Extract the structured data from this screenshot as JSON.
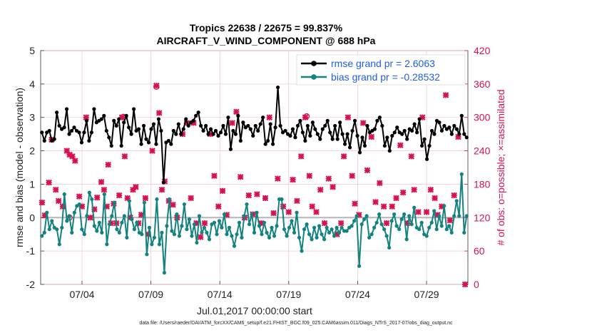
{
  "chart_data": {
    "type": "line",
    "title_line1": "Tropics 22638 / 22675 = 99.837%",
    "title_line2": "AIRCRAFT_V_WIND_COMPONENT @ 688 hPa",
    "xlabel": "Jul.01,2017 00:00:00 start",
    "ylabel": "rmse and bias (model - observation)",
    "ylabel_right": "# of obs: o=possible; ×=assimilated",
    "footer": "data file: /Users/raeder/DAI/ATM_forcXX/CAM6_setup/f.e21.FHIST_BGC.f09_025.CAM6assim.011/Diags_NTrS_2017-07/obs_diag_output.nc",
    "xlim": [
      1.0,
      32.0
    ],
    "ylim": [
      -2,
      5
    ],
    "ylim_right": [
      0,
      420
    ],
    "x_ticks": [
      {
        "x": 4,
        "label": "07/04"
      },
      {
        "x": 9,
        "label": "07/09"
      },
      {
        "x": 14,
        "label": "07/14"
      },
      {
        "x": 19,
        "label": "07/19"
      },
      {
        "x": 24,
        "label": "07/24"
      },
      {
        "x": 29,
        "label": "07/29"
      }
    ],
    "y_ticks": [
      "-2",
      "-1",
      "0",
      "1",
      "2",
      "3",
      "4",
      "5"
    ],
    "y_ticks_right": [
      "0",
      "60",
      "120",
      "180",
      "240",
      "300",
      "360",
      "420"
    ],
    "legend": {
      "position": "top-right",
      "entries": [
        "rmse grand pr = 2.6063",
        "bias grand pr = -0.28532"
      ]
    },
    "colors": {
      "rmse": "#000000",
      "bias": "#138280",
      "obs": "#d6124f",
      "legend_text": "#1f5fe0",
      "zero_line": "#b5b5b5",
      "grid": "#f2c9d6"
    },
    "series": [
      {
        "name": "rmse",
        "values": [
          2.55,
          2.3,
          2.55,
          2.6,
          2.3,
          2.35,
          3.15,
          2.75,
          2.65,
          2.7,
          3.25,
          2.5,
          2.6,
          2.7,
          2.6,
          2.55,
          2.25,
          2.55,
          2.9,
          2.3,
          2.55,
          3.25,
          2.85,
          2.9,
          2.95,
          3.05,
          2.6,
          2.4,
          2.15,
          2.9,
          2.75,
          2.95,
          2.15,
          2.85,
          3.05,
          2.7,
          2.5,
          3.25,
          2.6,
          2.65,
          2.2,
          2.75,
          2.35,
          2.25,
          2.65,
          2.8,
          2.2,
          2.95,
          2.6,
          1.05,
          2.25,
          2.3,
          2.2,
          2.6,
          2.5,
          2.8,
          2.5,
          2.65,
          2.95,
          2.75,
          2.85,
          2.9,
          3.05,
          3.15,
          2.75,
          2.6,
          2.75,
          2.5,
          2.65,
          2.5,
          2.6,
          2.45,
          2.55,
          2.75,
          2.5,
          3.0,
          2.05,
          2.6,
          2.5,
          3.05,
          2.3,
          2.85,
          2.7,
          2.75,
          2.65,
          2.45,
          2.75,
          2.6,
          2.8,
          3.0,
          2.2,
          2.3,
          2.8,
          2.2,
          2.7,
          3.9,
          2.75,
          2.55,
          2.6,
          2.5,
          2.45,
          2.65,
          2.4,
          2.75,
          2.9,
          2.55,
          2.3,
          2.75,
          2.45,
          2.85,
          2.65,
          2.5,
          2.35,
          2.65,
          2.75,
          2.9,
          2.55,
          2.35,
          2.75,
          2.35,
          2.85,
          2.5,
          2.2,
          2.5,
          2.1,
          2.6,
          2.9,
          2.45,
          1.95,
          2.4,
          2.15,
          2.75,
          2.55,
          2.6,
          2.65,
          2.9,
          3.0,
          2.75,
          2.15,
          2.4,
          2.0,
          2.45,
          2.55,
          2.7,
          2.55,
          2.5,
          2.6,
          2.35,
          2.65,
          2.6,
          2.8,
          2.55,
          2.95,
          2.15,
          2.35,
          1.75,
          2.15,
          2.6,
          2.5,
          2.9,
          2.85,
          2.6,
          2.75,
          2.65,
          2.7,
          2.5,
          2.75,
          2.65,
          2.5,
          3.05,
          2.5,
          2.4
        ]
      },
      {
        "name": "bias",
        "values": [
          -0.55,
          -0.45,
          0.15,
          -0.35,
          -0.1,
          -0.3,
          -0.35,
          -0.8,
          -0.3,
          0.7,
          -0.1,
          0.05,
          -0.45,
          0.15,
          0.35,
          0.4,
          -0.35,
          -0.5,
          0.05,
          0.75,
          0.55,
          -0.25,
          -0.4,
          -0.15,
          -0.45,
          0.7,
          -0.8,
          -0.2,
          0.05,
          0.45,
          -0.35,
          -0.45,
          -0.15,
          0.05,
          -0.6,
          0.5,
          -0.05,
          -0.35,
          -0.15,
          -0.45,
          -0.5,
          0.45,
          -1.1,
          -0.3,
          -0.8,
          -0.6,
          0.55,
          -0.8,
          -0.45,
          -1.65,
          -0.25,
          0.55,
          -0.4,
          -0.5,
          0.1,
          -0.55,
          -0.25,
          0.4,
          -0.35,
          -0.05,
          -0.55,
          -0.2,
          -0.75,
          0.05,
          -0.45,
          -0.3,
          -0.45,
          -0.65,
          -0.2,
          -0.15,
          -0.5,
          -0.1,
          -0.3,
          0.1,
          -0.5,
          -0.3,
          -0.55,
          -0.85,
          -0.5,
          -0.15,
          -0.6,
          0.05,
          0.4,
          -0.2,
          0.1,
          -0.45,
          0.15,
          -0.25,
          -0.5,
          -0.15,
          -0.45,
          -0.6,
          -0.3,
          -0.55,
          -0.25,
          0.55,
          0.55,
          -0.35,
          -0.55,
          -0.3,
          -0.1,
          -0.45,
          0.15,
          -0.6,
          -1.0,
          -0.35,
          -0.2,
          -0.5,
          -0.65,
          -0.3,
          -0.6,
          -0.25,
          -0.5,
          -0.65,
          -0.3,
          -0.45,
          -0.35,
          -0.55,
          -0.3,
          -0.45,
          -0.3,
          -0.4,
          -0.4,
          -0.3,
          -0.25,
          -0.1,
          0.05,
          -1.45,
          -0.2,
          -0.05,
          0.05,
          -0.6,
          -0.5,
          -0.3,
          -0.15,
          0.1,
          -0.2,
          -0.35,
          -0.55,
          -0.9,
          -0.1,
          0.1,
          -0.25,
          -0.35,
          -0.05,
          0.1,
          -0.65,
          0.05,
          -0.2,
          0.3,
          -0.3,
          -0.35,
          -0.15,
          -0.5,
          -0.55,
          -0.3,
          -0.15,
          0.2,
          -0.35,
          0.05,
          -0.25,
          0.35,
          -0.35,
          -0.25,
          -0.45,
          0.05,
          0.5,
          0.05,
          1.3,
          -0.45,
          0.05
        ]
      },
      {
        "name": "obs_possible",
        "values": [
          [
            3.1,
            120
          ],
          [
            7.0,
            301
          ],
          [
            9.4,
            355
          ],
          [
            20.3,
            302
          ]
        ]
      },
      {
        "name": "obs_assimilated",
        "values": [
          [
            1.1,
            147
          ],
          [
            1.3,
            124
          ],
          [
            1.6,
            183
          ],
          [
            1.8,
            260
          ],
          [
            2.1,
            170
          ],
          [
            2.3,
            150
          ],
          [
            2.6,
            140
          ],
          [
            2.9,
            240
          ],
          [
            3.1,
            233
          ],
          [
            3.3,
            230
          ],
          [
            3.5,
            222
          ],
          [
            3.8,
            158
          ],
          [
            4.0,
            140
          ],
          [
            4.3,
            300
          ],
          [
            4.6,
            120
          ],
          [
            4.9,
            135
          ],
          [
            5.1,
            156
          ],
          [
            5.4,
            184
          ],
          [
            5.6,
            170
          ],
          [
            5.8,
            140
          ],
          [
            5.9,
            215
          ],
          [
            6.1,
            110
          ],
          [
            6.3,
            145
          ],
          [
            6.5,
            110
          ],
          [
            6.7,
            160
          ],
          [
            6.9,
            300
          ],
          [
            7.1,
            230
          ],
          [
            7.3,
            155
          ],
          [
            7.5,
            120
          ],
          [
            7.7,
            170
          ],
          [
            7.9,
            175
          ],
          [
            8.1,
            110
          ],
          [
            8.3,
            125
          ],
          [
            8.6,
            155
          ],
          [
            8.8,
            90
          ],
          [
            9.1,
            240
          ],
          [
            9.4,
            357
          ],
          [
            9.6,
            308
          ],
          [
            9.8,
            170
          ],
          [
            10.0,
            185
          ],
          [
            10.3,
            150
          ],
          [
            10.6,
            143
          ],
          [
            10.9,
            120
          ],
          [
            11.3,
            270
          ],
          [
            11.6,
            290
          ],
          [
            11.9,
            155
          ],
          [
            12.1,
            290
          ],
          [
            12.3,
            110
          ],
          [
            12.6,
            85
          ],
          [
            12.9,
            110
          ],
          [
            13.3,
            270
          ],
          [
            13.6,
            195
          ],
          [
            13.9,
            140
          ],
          [
            14.2,
            168
          ],
          [
            14.5,
            125
          ],
          [
            14.9,
            290
          ],
          [
            15.2,
            310
          ],
          [
            15.5,
            193
          ],
          [
            15.8,
            120
          ],
          [
            16.1,
            160
          ],
          [
            16.4,
            126
          ],
          [
            16.7,
            162
          ],
          [
            17.0,
            110
          ],
          [
            17.3,
            155
          ],
          [
            17.6,
            300
          ],
          [
            17.9,
            128
          ],
          [
            18.2,
            190
          ],
          [
            18.6,
            140
          ],
          [
            19.0,
            130
          ],
          [
            19.3,
            188
          ],
          [
            19.6,
            150
          ],
          [
            19.9,
            230
          ],
          [
            20.2,
            300
          ],
          [
            20.5,
            195
          ],
          [
            20.7,
            140
          ],
          [
            21.0,
            130
          ],
          [
            21.3,
            170
          ],
          [
            21.6,
            110
          ],
          [
            21.9,
            190
          ],
          [
            22.2,
            175
          ],
          [
            22.5,
            90
          ],
          [
            22.8,
            110
          ],
          [
            23.0,
            230
          ],
          [
            23.3,
            300
          ],
          [
            23.6,
            195
          ],
          [
            23.8,
            145
          ],
          [
            24.1,
            125
          ],
          [
            24.4,
            290
          ],
          [
            24.7,
            205
          ],
          [
            25.0,
            265
          ],
          [
            25.3,
            148
          ],
          [
            25.6,
            182
          ],
          [
            25.9,
            140
          ],
          [
            26.1,
            110
          ],
          [
            26.5,
            140
          ],
          [
            26.8,
            155
          ],
          [
            27.1,
            250
          ],
          [
            27.3,
            165
          ],
          [
            27.6,
            110
          ],
          [
            27.9,
            230
          ],
          [
            28.1,
            170
          ],
          [
            28.4,
            130
          ],
          [
            28.7,
            300
          ],
          [
            29.0,
            130
          ],
          [
            29.3,
            170
          ],
          [
            29.6,
            155
          ],
          [
            29.8,
            125
          ],
          [
            30.1,
            140
          ],
          [
            30.4,
            340
          ],
          [
            30.7,
            115
          ],
          [
            31.0,
            160
          ],
          [
            31.3,
            265
          ],
          [
            31.8,
            0
          ]
        ]
      }
    ]
  }
}
